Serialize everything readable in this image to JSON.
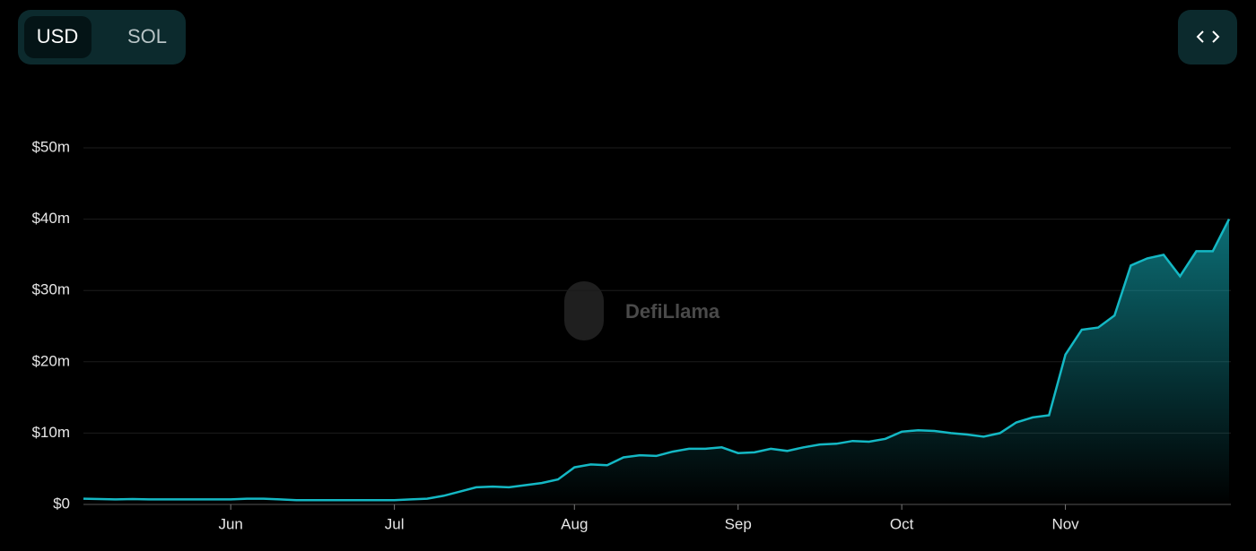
{
  "toggle": [
    "USD",
    "SOL"
  ],
  "watermark": "DefiLlama",
  "chart_data": {
    "type": "area",
    "categories": [
      null,
      null,
      null,
      null,
      null,
      null,
      null,
      null,
      null,
      "Jun",
      null,
      null,
      null,
      null,
      null,
      null,
      null,
      null,
      null,
      "Jul",
      null,
      null,
      null,
      null,
      null,
      null,
      null,
      null,
      null,
      null,
      "Aug",
      null,
      null,
      null,
      null,
      null,
      null,
      null,
      null,
      null,
      "Sep",
      null,
      null,
      null,
      null,
      null,
      null,
      null,
      null,
      null,
      "Oct",
      null,
      null,
      null,
      null,
      null,
      null,
      null,
      null,
      null,
      "Nov",
      null,
      null,
      null,
      null,
      null,
      null,
      null,
      null,
      null,
      null
    ],
    "values": [
      800000,
      750000,
      700000,
      750000,
      700000,
      700000,
      700000,
      700000,
      700000,
      700000,
      800000,
      800000,
      700000,
      600000,
      600000,
      600000,
      600000,
      600000,
      600000,
      600000,
      700000,
      800000,
      1200000,
      1800000,
      2400000,
      2500000,
      2400000,
      2700000,
      3000000,
      3500000,
      5200000,
      5600000,
      5500000,
      6600000,
      6900000,
      6800000,
      7400000,
      7800000,
      7800000,
      8000000,
      7200000,
      7300000,
      7800000,
      7500000,
      8000000,
      8400000,
      8500000,
      8900000,
      8800000,
      9200000,
      10200000,
      10400000,
      10300000,
      10000000,
      9800000,
      9500000,
      10000000,
      11500000,
      12200000,
      12500000,
      21000000,
      24500000,
      24800000,
      26500000,
      33500000,
      34500000,
      35000000,
      32000000,
      35500000,
      35500000,
      40000000
    ],
    "color": "#14b8c4",
    "ylim": [
      0,
      50000000
    ],
    "yticks": [
      {
        "value": 0,
        "label": "$0"
      },
      {
        "value": 10000000,
        "label": "$10m"
      },
      {
        "value": 20000000,
        "label": "$20m"
      },
      {
        "value": 30000000,
        "label": "$30m"
      },
      {
        "value": 40000000,
        "label": "$40m"
      },
      {
        "value": 50000000,
        "label": "$50m"
      }
    ],
    "grid": true
  }
}
